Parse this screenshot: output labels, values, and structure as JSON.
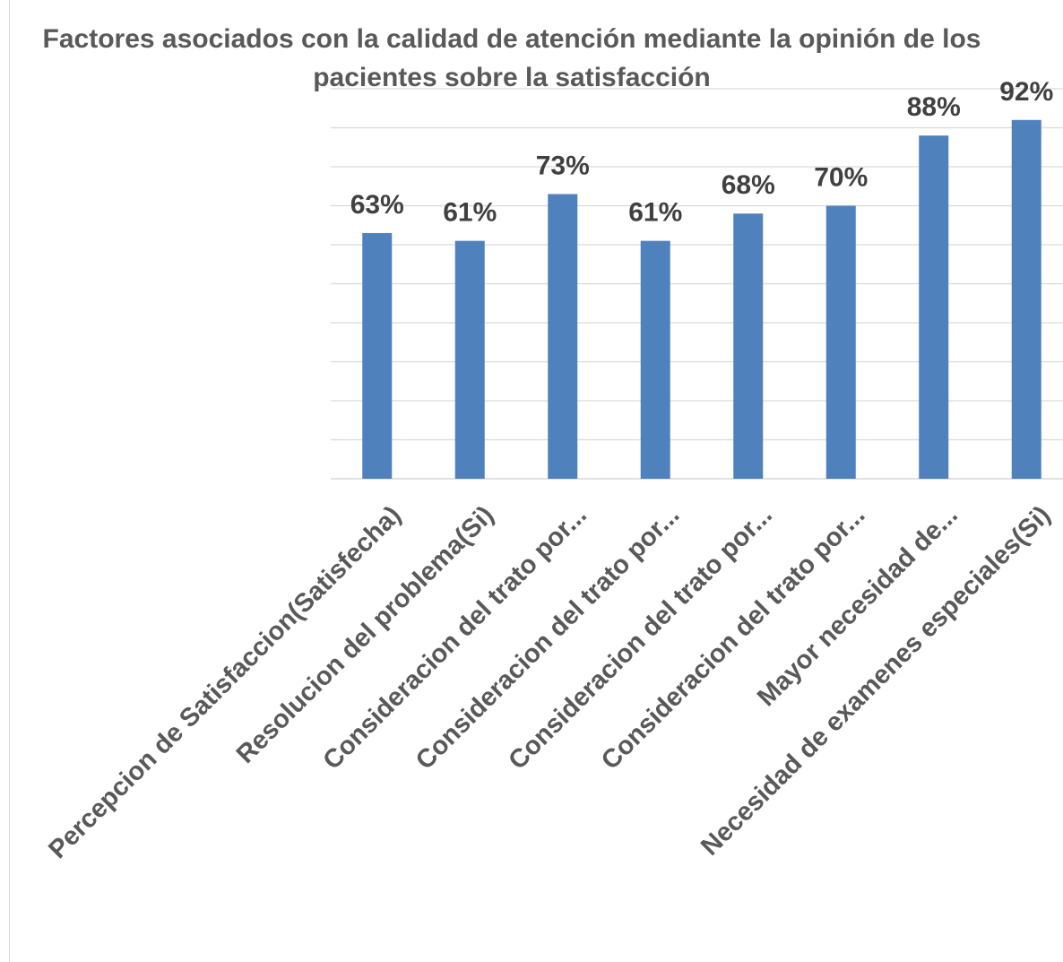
{
  "chart_data": {
    "type": "bar",
    "title": "Factores asociados con la calidad de atención mediante la opinión de los pacientes sobre la satisfacción",
    "categories": [
      "Percepcion de Satisfaccion(Satisfecha)",
      "Resolucion del problema(Si)",
      "Consideracion del trato por...",
      "Consideracion del trato por...",
      "Consideracion del trato por...",
      "Consideracion del trato por...",
      "Mayor necesidad de...",
      "Necesidad de examenes especiales(Si)"
    ],
    "values": [
      63,
      61,
      73,
      61,
      68,
      70,
      88,
      92
    ],
    "data_labels": [
      "63%",
      "61%",
      "73%",
      "61%",
      "68%",
      "70%",
      "88%",
      "92%"
    ],
    "ylim": [
      0,
      100
    ],
    "grid": true,
    "legend": "none",
    "colors": {
      "bar": "#4f81bd",
      "grid": "#d9d9d9"
    }
  }
}
